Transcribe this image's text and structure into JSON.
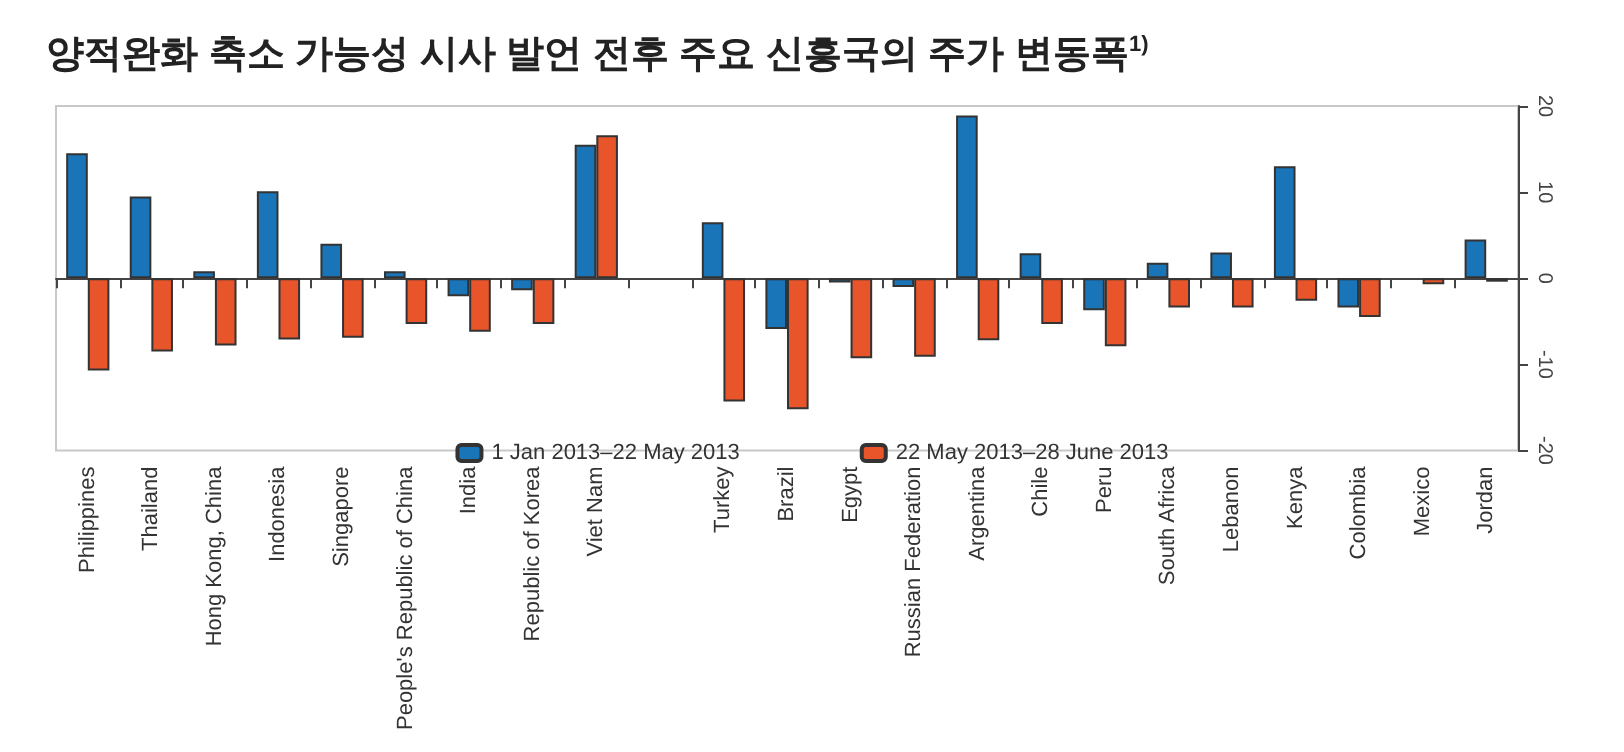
{
  "chart_data": {
    "type": "bar",
    "title": "양적완화 축소 가능성 시사 발언 전후 주요 신흥국의 주가 변동폭$^{1)}$",
    "categories": [
      "Philippines",
      "Thailand",
      "Hong Kong, China",
      "Indonesia",
      "Singapore",
      "People's Republic of China",
      "India",
      "Republic of Korea",
      "Viet Nam",
      null,
      "Turkey",
      "Brazil",
      "Egypt",
      "Russian Federation",
      "Argentina",
      "Chile",
      "Peru",
      "South Africa",
      "Lebanon",
      "Kenya",
      "Colombia",
      "Mexico",
      "Jordan"
    ],
    "series": [
      {
        "name": "1 Jan 2013–22 May 2013",
        "color": "#1a75b8",
        "values": [
          14.5,
          9.5,
          0.8,
          10.1,
          4.0,
          0.8,
          -2.1,
          -1.4,
          15.5,
          null,
          6.5,
          -5.9,
          -0.5,
          -1.0,
          18.9,
          2.9,
          -3.7,
          1.8,
          3.0,
          13.0,
          -3.4,
          null,
          4.5
        ]
      },
      {
        "name": "22 May 2013–28 June 2013",
        "color": "#e8552a",
        "values": [
          -10.7,
          -8.5,
          -7.8,
          -7.1,
          -6.9,
          -5.3,
          -6.2,
          -5.3,
          16.6,
          null,
          -14.3,
          -15.2,
          -9.3,
          -9.1,
          -7.2,
          -5.3,
          -7.9,
          -3.4,
          -3.4,
          -2.6,
          -4.5,
          -0.7,
          -0.4
        ]
      }
    ],
    "ylim": [
      -20,
      20
    ],
    "yticks": [
      -20,
      -10,
      0,
      10,
      20
    ],
    "legend": "bottom"
  }
}
